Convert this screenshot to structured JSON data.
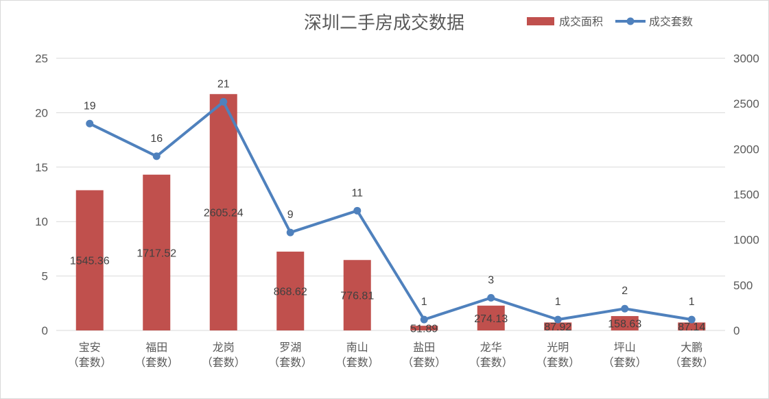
{
  "chart_data": {
    "type": "bar",
    "title": "深圳二手房成交数据",
    "categories": [
      [
        "宝安",
        "（套数）"
      ],
      [
        "福田",
        "（套数）"
      ],
      [
        "龙岗",
        "（套数）"
      ],
      [
        "罗湖",
        "（套数）"
      ],
      [
        "南山",
        "（套数）"
      ],
      [
        "盐田",
        "（套数）"
      ],
      [
        "龙华",
        "（套数）"
      ],
      [
        "光明",
        "（套数）"
      ],
      [
        "坪山",
        "（套数）"
      ],
      [
        "大鹏",
        "（套数）"
      ]
    ],
    "series": [
      {
        "name": "成交面积",
        "type": "bar",
        "axis": "left",
        "color": "#C0504D",
        "values": [
          12.88,
          14.31,
          21.71,
          7.24,
          6.47,
          0.43,
          2.28,
          0.73,
          1.32,
          0.73
        ],
        "labels": [
          "1545.36",
          "1717.52",
          "2605.24",
          "868.62",
          "776.81",
          "51.89",
          "274.13",
          "87.92",
          "158.63",
          "87.14"
        ]
      },
      {
        "name": "成交套数",
        "type": "line",
        "axis": "right",
        "color": "#4F81BD",
        "values": [
          2280,
          1920,
          2520,
          1080,
          1320,
          120,
          360,
          120,
          240,
          120
        ],
        "labels": [
          "19",
          "16",
          "21",
          "9",
          "11",
          "1",
          "3",
          "1",
          "2",
          "1"
        ]
      }
    ],
    "y_left": {
      "min": 0,
      "max": 25,
      "ticks": [
        "0",
        "5",
        "10",
        "15",
        "20",
        "25"
      ]
    },
    "y_right": {
      "min": 0,
      "max": 3000,
      "ticks": [
        "0",
        "500",
        "1000",
        "1500",
        "2000",
        "2500",
        "3000"
      ]
    },
    "grid": true,
    "legend_position": "top-right"
  }
}
